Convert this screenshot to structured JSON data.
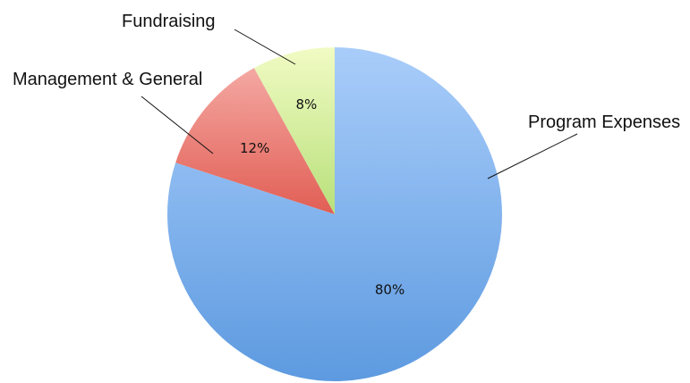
{
  "chart_data": {
    "type": "pie",
    "title": "",
    "slices": [
      {
        "label": "Program Expenses",
        "value": 80,
        "display": "80%"
      },
      {
        "label": "Management & General",
        "value": 12,
        "display": "12%"
      },
      {
        "label": "Fundraising",
        "value": 8,
        "display": "8%"
      }
    ],
    "colors": [
      {
        "from": "#a9cdfa",
        "to": "#5d9ae0"
      },
      {
        "from": "#f4a8a2",
        "to": "#e15e54"
      },
      {
        "from": "#f1fbc4",
        "to": "#b8e07a"
      }
    ],
    "start_direction": "top",
    "direction": "clockwise",
    "labels": "outside with leader lines",
    "legend": "none"
  }
}
